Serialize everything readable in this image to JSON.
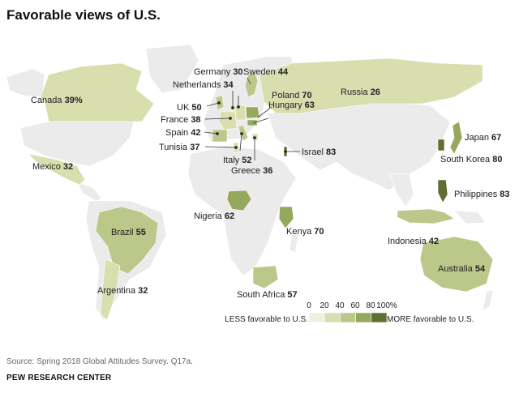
{
  "title": "Favorable views of U.S.",
  "source": "Source: Spring 2018 Global Attitudes Survey. Q17a.",
  "organization": "PEW RESEARCH CENTER",
  "legend": {
    "ticks": [
      "0",
      "20",
      "40",
      "60",
      "80",
      "100%"
    ],
    "less_label": "LESS favorable to U.S.",
    "more_label": "MORE favorable to U.S.",
    "bins": [
      {
        "range": "0-20",
        "color": "#f0f0e2"
      },
      {
        "range": "20-40",
        "color": "#d9deae"
      },
      {
        "range": "40-60",
        "color": "#bcc78a"
      },
      {
        "range": "60-80",
        "color": "#96a85c"
      },
      {
        "range": "80-100",
        "color": "#5f6e32"
      }
    ]
  },
  "colors": {
    "no_data": "#ebebeb",
    "border": "#ffffff",
    "ocean": "#ffffff"
  },
  "countries": [
    {
      "name": "Canada",
      "value": "39%"
    },
    {
      "name": "Mexico",
      "value": "32"
    },
    {
      "name": "Brazil",
      "value": "55"
    },
    {
      "name": "Argentina",
      "value": "32"
    },
    {
      "name": "Germany",
      "value": "30"
    },
    {
      "name": "Sweden",
      "value": "44"
    },
    {
      "name": "Netherlands",
      "value": "34"
    },
    {
      "name": "UK",
      "value": "50"
    },
    {
      "name": "France",
      "value": "38"
    },
    {
      "name": "Spain",
      "value": "42"
    },
    {
      "name": "Tunisia",
      "value": "37"
    },
    {
      "name": "Italy",
      "value": "52"
    },
    {
      "name": "Greece",
      "value": "36"
    },
    {
      "name": "Poland",
      "value": "70"
    },
    {
      "name": "Hungary",
      "value": "63"
    },
    {
      "name": "Russia",
      "value": "26"
    },
    {
      "name": "Israel",
      "value": "83"
    },
    {
      "name": "Nigeria",
      "value": "62"
    },
    {
      "name": "Kenya",
      "value": "70"
    },
    {
      "name": "South Africa",
      "value": "57"
    },
    {
      "name": "Japan",
      "value": "67"
    },
    {
      "name": "South Korea",
      "value": "80"
    },
    {
      "name": "Philippines",
      "value": "83"
    },
    {
      "name": "Indonesia",
      "value": "42"
    },
    {
      "name": "Australia",
      "value": "54"
    }
  ]
}
